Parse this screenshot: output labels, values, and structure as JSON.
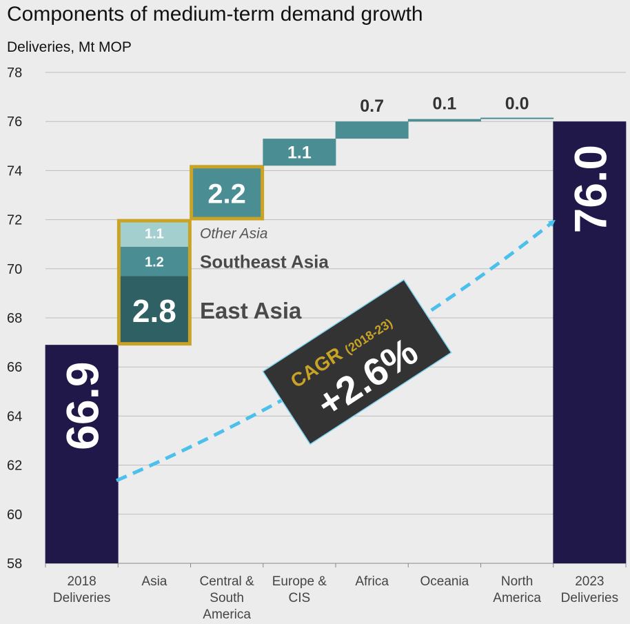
{
  "title": "Components of medium-term demand growth",
  "subtitle": "Deliveries, Mt MOP",
  "colors": {
    "navy": "#1f1848",
    "teal": "#4a8e94",
    "dark_teal": "#2e6064",
    "light_teal": "#a4cfcf",
    "gold": "#c9a326",
    "cyan": "#4cc0ec",
    "callout_bg": "#333333"
  },
  "chart_data": {
    "type": "waterfall",
    "title": "Components of medium-term demand growth",
    "ylabel": "Deliveries, Mt MOP",
    "ylim": [
      58,
      78
    ],
    "yticks": [
      "58",
      "60",
      "62",
      "64",
      "66",
      "68",
      "70",
      "72",
      "74",
      "76",
      "78"
    ],
    "grid": true,
    "categories": [
      [
        "2018",
        "Deliveries"
      ],
      [
        "Asia"
      ],
      [
        "Central &",
        "South",
        "America"
      ],
      [
        "Europe &",
        "CIS"
      ],
      [
        "Africa"
      ],
      [
        "Oceania"
      ],
      [
        "North",
        "America"
      ],
      [
        "2023",
        "Deliveries"
      ]
    ],
    "start_total": {
      "value": 66.9,
      "label": "66.9"
    },
    "end_total": {
      "value": 76.0,
      "label": "76.0"
    },
    "asia_breakdown": [
      {
        "name": "East Asia",
        "value": 2.8,
        "label": "2.8"
      },
      {
        "name": "Southeast Asia",
        "value": 1.2,
        "label": "1.2"
      },
      {
        "name": "Other Asia",
        "value": 1.1,
        "label": "1.1"
      }
    ],
    "increments": [
      {
        "category": "Central & South America",
        "value": 2.2,
        "label": "2.2"
      },
      {
        "category": "Europe & CIS",
        "value": 1.1,
        "label": "1.1"
      },
      {
        "category": "Africa",
        "value": 0.7,
        "label": "0.7"
      },
      {
        "category": "Oceania",
        "value": 0.1,
        "label": "0.1"
      },
      {
        "category": "North America",
        "value": 0.0,
        "label": "0.0"
      }
    ],
    "callout": {
      "label": "CAGR",
      "period": "(2018-23)",
      "value": "+2.6%"
    }
  }
}
